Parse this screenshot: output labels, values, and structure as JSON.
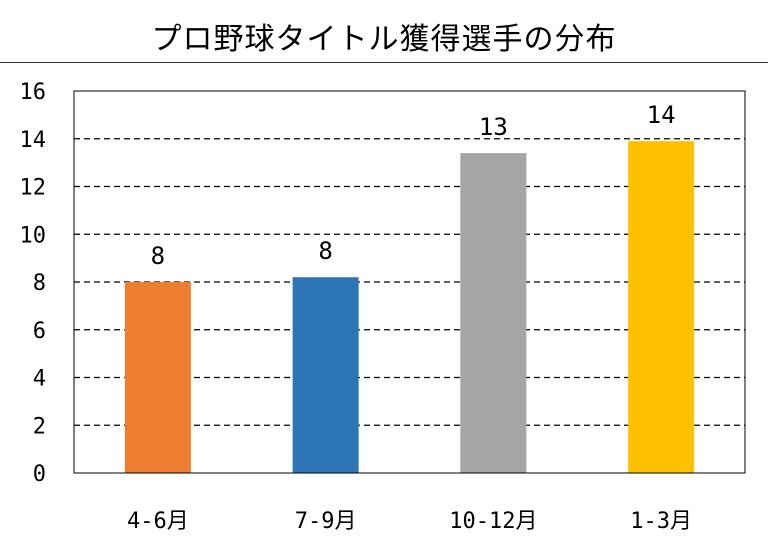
{
  "chart_data": {
    "type": "bar",
    "title": "プロ野球タイトル獲得選手の分布",
    "categories": [
      "4-6月",
      "7-9月",
      "10-12月",
      "1-3月"
    ],
    "values": [
      8,
      8,
      13,
      14
    ],
    "bar_heights": [
      8.0,
      8.2,
      13.4,
      13.9
    ],
    "colors": [
      "#ED7D31",
      "#2E75B6",
      "#A5A5A5",
      "#FFC000"
    ],
    "ylim": [
      0,
      16
    ],
    "yticks": [
      0,
      2,
      4,
      6,
      8,
      10,
      12,
      14,
      16
    ],
    "grid": "dashed-horizontal",
    "legend": "none"
  }
}
